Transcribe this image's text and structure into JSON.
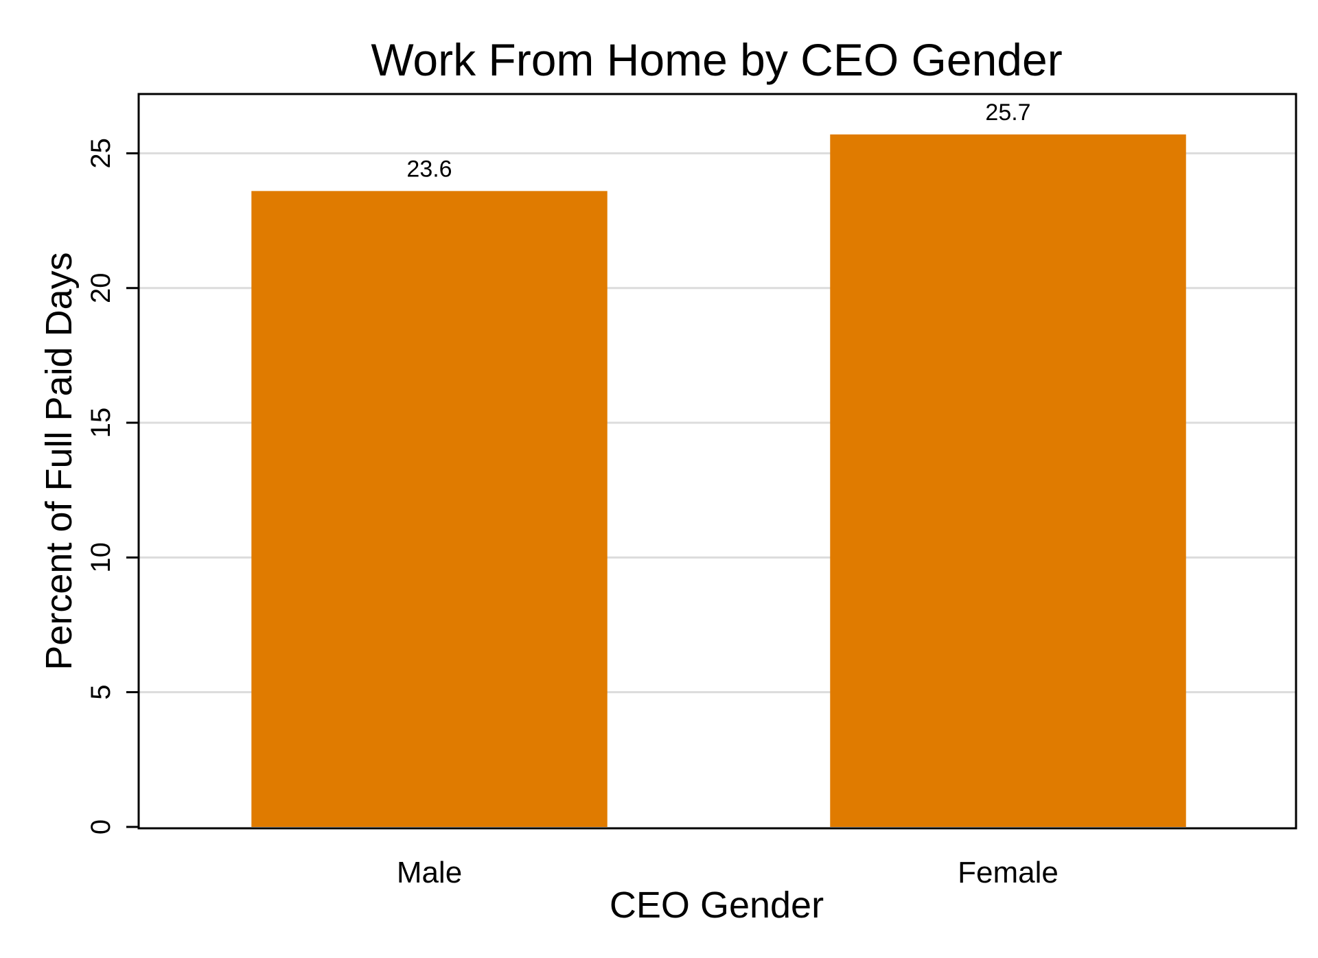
{
  "chart_data": {
    "type": "bar",
    "title": "Work From Home by CEO Gender",
    "xlabel": "CEO Gender",
    "ylabel": "Percent of Full Paid Days",
    "categories": [
      "Male",
      "Female"
    ],
    "values": [
      23.6,
      25.7
    ],
    "data_labels": [
      "23.6",
      "25.7"
    ],
    "yticks": [
      0,
      5,
      10,
      15,
      20,
      25
    ],
    "ytick_labels": [
      "0",
      "5",
      "10",
      "15",
      "20",
      "25"
    ],
    "ylim": [
      0,
      27.2
    ],
    "grid": true,
    "bar_color": "#e07b00",
    "grid_color": "#dcdcdc"
  }
}
